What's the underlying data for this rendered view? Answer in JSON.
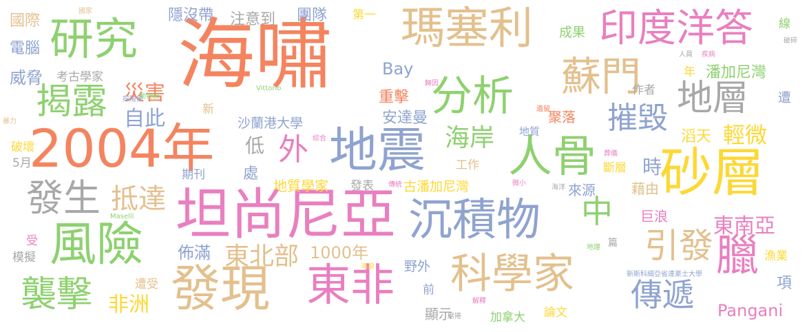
{
  "palette": {
    "orange": "#f4845f",
    "tan": "#e3c08d",
    "green": "#8ed16f",
    "pink": "#e97fc0",
    "blue": "#8fa3cf",
    "gray": "#a8a8a8",
    "yellow": "#fdd835"
  },
  "words": [
    "海嘯",
    "地震",
    "2004年",
    "坦尚尼亞",
    "東非",
    "砂層",
    "瑪塞利",
    "沉積物",
    "科學家",
    "發現",
    "研究",
    "人骨",
    "分析",
    "蘇門",
    "印度洋答",
    "風險",
    "揭露",
    "地層",
    "摧毀",
    "發生",
    "襲擊",
    "傳遞",
    "臘",
    "引發",
    "中",
    "外",
    "東南亞",
    "海岸",
    "抵達",
    "災害",
    "自此",
    "Bay",
    "東北部",
    "威脅",
    "國際",
    "電腦",
    "注意到",
    "團隊",
    "隱沒帶",
    "非洲",
    "1000年",
    "Pangani",
    "重擊",
    "安達曼",
    "沙蘭港大學",
    "潘加尼灣",
    "古潘加尼灣",
    "地質學家",
    "低",
    "成果",
    "第一",
    "作者",
    "時",
    "處",
    "佈滿",
    "巨浪",
    "聚落",
    "藉由",
    "來源",
    "年",
    "遭",
    "項",
    "期刊",
    "工作",
    "發表",
    "地質",
    "漁業",
    "論文",
    "加拿大",
    "顯示",
    "野外",
    "前",
    "遭受",
    "受",
    "模擬",
    "破壞",
    "5月",
    "新",
    "線",
    "破碎",
    "考古學家",
    "斷層",
    "滔天",
    "輕微",
    "篇",
    "國家",
    "人員",
    "疾病",
    "動物群",
    "探險家",
    "歸因",
    "遺留",
    "綜合",
    "傳統",
    "微小",
    "海洋",
    "葬儀",
    "地理",
    "海浪",
    "解釋",
    "席捲",
    "Maselli",
    "Vittorio",
    "新斯科細亞省達豪士大學",
    "暴力"
  ]
}
